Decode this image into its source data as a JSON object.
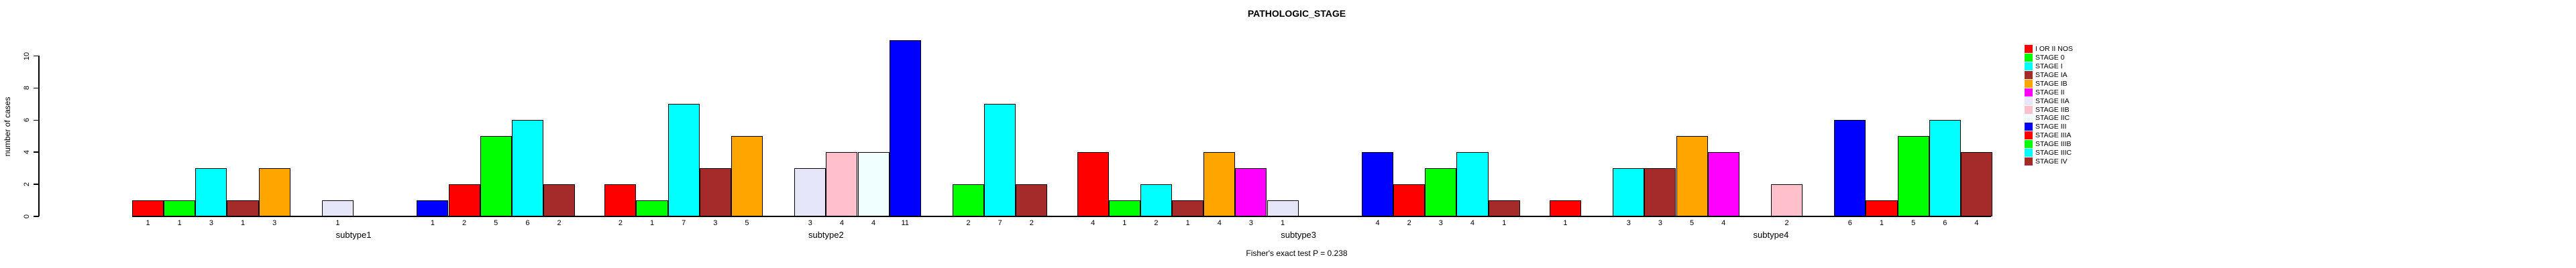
{
  "title": "PATHOLOGIC_STAGE",
  "footer": "Fisher's exact test P = 0.238",
  "y_axis": {
    "label": "number of cases",
    "tick_labels": [
      "0",
      "2",
      "4",
      "6",
      "8",
      "10"
    ]
  },
  "chart_data": {
    "type": "bar",
    "title": "PATHOLOGIC_STAGE",
    "xlabel": "",
    "ylabel": "number of cases",
    "ylim": [
      0,
      10
    ],
    "yticks": [
      0,
      2,
      4,
      6,
      8,
      10
    ],
    "grid": false,
    "legend_position": "right",
    "annotation": "Fisher's exact test P = 0.238",
    "bar_value_labels_shown": true,
    "categories": [
      "subtype1",
      "subtype2",
      "subtype3",
      "subtype4"
    ],
    "series": [
      {
        "name": "I OR II NOS",
        "color": "#FF0000",
        "values": [
          1,
          2,
          4,
          1
        ]
      },
      {
        "name": "STAGE 0",
        "color": "#00FF00",
        "values": [
          1,
          1,
          1,
          0
        ]
      },
      {
        "name": "STAGE I",
        "color": "#00FFFF",
        "values": [
          3,
          7,
          2,
          3
        ]
      },
      {
        "name": "STAGE IA",
        "color": "#A52A2A",
        "values": [
          1,
          3,
          1,
          3
        ]
      },
      {
        "name": "STAGE IB",
        "color": "#FFA500",
        "values": [
          3,
          5,
          4,
          5
        ]
      },
      {
        "name": "STAGE II",
        "color": "#FF00FF",
        "values": [
          0,
          0,
          3,
          4
        ]
      },
      {
        "name": "STAGE IIA",
        "color": "#E6E6FA",
        "values": [
          1,
          3,
          1,
          0
        ]
      },
      {
        "name": "STAGE IIB",
        "color": "#FFC0CB",
        "values": [
          0,
          4,
          0,
          2
        ]
      },
      {
        "name": "STAGE IIC",
        "color": "#F0FFFF",
        "values": [
          0,
          4,
          0,
          0
        ]
      },
      {
        "name": "STAGE III",
        "color": "#0000FF",
        "values": [
          1,
          11,
          4,
          6
        ]
      },
      {
        "name": "STAGE IIIA",
        "color": "#FF0000",
        "values": [
          2,
          0,
          2,
          1
        ]
      },
      {
        "name": "STAGE IIIB",
        "color": "#00FF00",
        "values": [
          5,
          2,
          3,
          5
        ]
      },
      {
        "name": "STAGE IIIC",
        "color": "#00FFFF",
        "values": [
          6,
          7,
          4,
          6
        ]
      },
      {
        "name": "STAGE IV",
        "color": "#A52A2A",
        "values": [
          2,
          2,
          1,
          4
        ]
      }
    ]
  }
}
